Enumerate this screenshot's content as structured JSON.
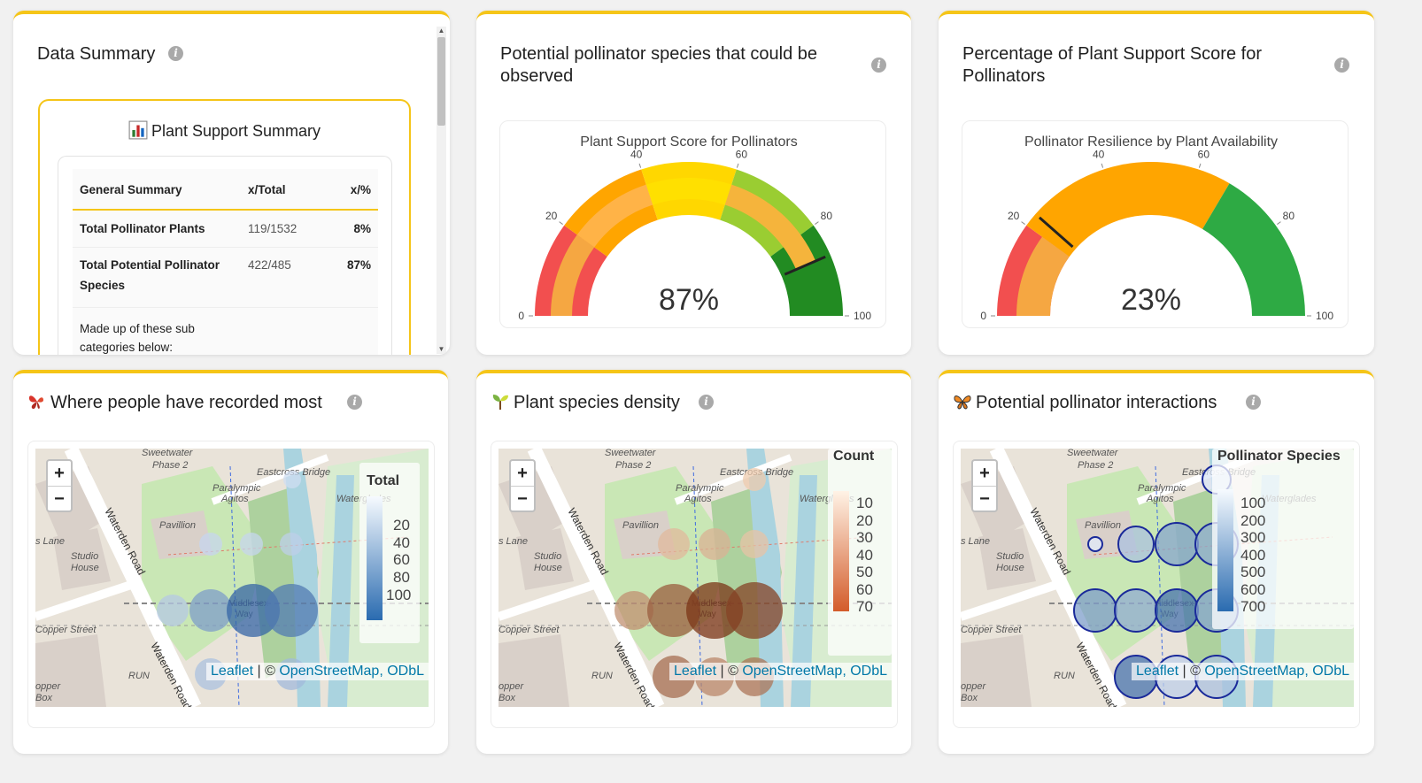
{
  "data_summary": {
    "title": "Data Summary",
    "box_title": "Plant Support Summary",
    "columns": [
      "General Summary",
      "x/Total",
      "x/%"
    ],
    "rows": [
      {
        "label": "Total Pollinator Plants",
        "value": "119/1532",
        "pct": "8%"
      },
      {
        "label": "Total Potential Pollinator Species",
        "value": "422/485",
        "pct": "87%"
      }
    ],
    "sub_note": "Made up of these sub categories below:"
  },
  "gauge1": {
    "card_title": "Potential pollinator species that could be observed",
    "chart_title": "Plant Support Score for Pollinators",
    "value_label": "87%",
    "chart_data": {
      "type": "gauge",
      "value": 87,
      "range": [
        0,
        100
      ],
      "ticks": [
        "0",
        "20",
        "40",
        "60",
        "80",
        "100"
      ],
      "bands": [
        {
          "from": 0,
          "to": 20,
          "color": "#f24f4f"
        },
        {
          "from": 20,
          "to": 40,
          "color": "#ffa500"
        },
        {
          "from": 40,
          "to": 60,
          "color": "#ffd700"
        },
        {
          "from": 60,
          "to": 80,
          "color": "#9acd32"
        },
        {
          "from": 80,
          "to": 100,
          "color": "#228b22"
        }
      ]
    }
  },
  "gauge2": {
    "card_title": "Percentage of Plant Support Score for Pollinators",
    "chart_title": "Pollinator Resilience by Plant Availability",
    "value_label": "23%",
    "chart_data": {
      "type": "gauge",
      "value": 23,
      "range": [
        0,
        100
      ],
      "ticks": [
        "0",
        "20",
        "40",
        "60",
        "80",
        "100"
      ],
      "bands": [
        {
          "from": 0,
          "to": 20,
          "color": "#f24f4f"
        },
        {
          "from": 20,
          "to": 67,
          "color": "#ffa500"
        },
        {
          "from": 67,
          "to": 100,
          "color": "#2eaa44"
        }
      ]
    }
  },
  "map_labels": {
    "zoom_in": "+",
    "zoom_out": "−",
    "leaflet": "Leaflet",
    "sep": " | © ",
    "osm": "OpenStreetMap, ODbL",
    "streets": [
      "Sweetwater Phase 2",
      "Paralympic Agitos",
      "Eastcross Bridge",
      "Pavillion",
      "Studio House",
      "Waterden Road",
      "Copper Street",
      "Middlesex Way",
      "Copper Box",
      "RUN",
      "Waterglades",
      "Lane"
    ]
  },
  "map1": {
    "title": "Where people have recorded most",
    "legend_title": "Total",
    "legend_ticks": [
      "20",
      "40",
      "60",
      "80",
      "100"
    ]
  },
  "map2": {
    "title": "Plant species density",
    "legend_title": "Count",
    "legend_ticks": [
      "10",
      "20",
      "30",
      "40",
      "50",
      "60",
      "70"
    ]
  },
  "map3": {
    "title": "Potential pollinator interactions",
    "legend_title": "Pollinator Species",
    "legend_ticks": [
      "100",
      "200",
      "300",
      "400",
      "500",
      "600",
      "700"
    ]
  }
}
